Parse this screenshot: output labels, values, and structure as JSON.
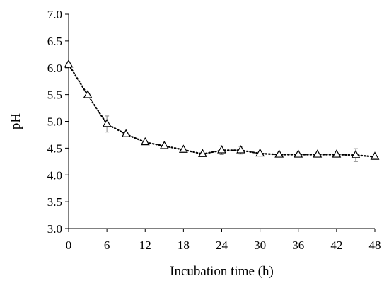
{
  "chart_data": {
    "type": "scatter",
    "xlabel": "Incubation time (h)",
    "ylabel": "pH",
    "xlim": [
      0,
      48
    ],
    "ylim": [
      3.0,
      7.0
    ],
    "xticks": [
      0,
      6,
      12,
      18,
      24,
      30,
      36,
      42,
      48
    ],
    "xtick_labels": [
      "0",
      "6",
      "12",
      "18",
      "24",
      "30",
      "36",
      "42",
      "48"
    ],
    "yticks": [
      3.0,
      3.5,
      4.0,
      4.5,
      5.0,
      5.5,
      6.0,
      6.5,
      7.0
    ],
    "ytick_labels": [
      "3.0",
      "3.5",
      "4.0",
      "4.5",
      "5.0",
      "5.5",
      "6.0",
      "6.5",
      "7.0"
    ],
    "grid": false,
    "marker": "open-triangle",
    "line_style": "dotted",
    "series": [
      {
        "x": [
          0,
          3,
          6,
          9,
          12,
          15,
          18,
          21,
          24,
          27,
          30,
          33,
          36,
          39,
          42,
          45,
          48
        ],
        "y": [
          6.06,
          5.49,
          4.95,
          4.76,
          4.61,
          4.54,
          4.47,
          4.39,
          4.46,
          4.46,
          4.4,
          4.38,
          4.38,
          4.38,
          4.38,
          4.37,
          4.34
        ],
        "error": [
          0.0,
          0.0,
          0.15,
          0.03,
          0.03,
          0.02,
          0.02,
          0.02,
          0.08,
          0.07,
          0.02,
          0.02,
          0.02,
          0.02,
          0.02,
          0.12,
          0.02
        ]
      }
    ]
  }
}
